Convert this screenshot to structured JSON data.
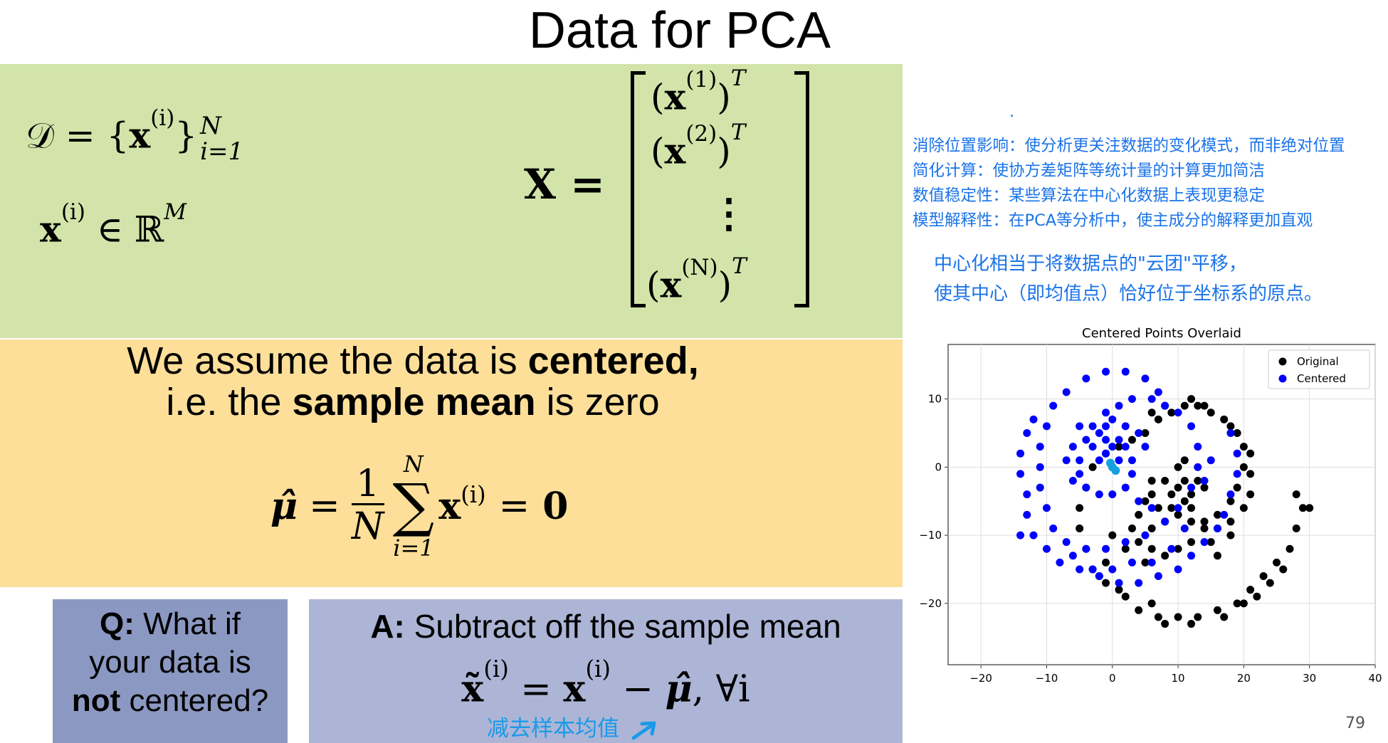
{
  "title": "Data for PCA",
  "green": {
    "dataset_D": "𝒟 = {",
    "dataset_x": "x",
    "dataset_sup": "(i)",
    "dataset_close": "}",
    "dataset_top": "N",
    "dataset_bottom": "i=1",
    "x_elem": "x",
    "x_elem_sup": "(i)",
    "x_in": "∈ ℝ",
    "x_in_sup": "M",
    "matrix_lhs": "X =",
    "matrix_rows": [
      {
        "open": "(",
        "x": "x",
        "sup": "(1)",
        "close": ")",
        "t": "T"
      },
      {
        "open": "(",
        "x": "x",
        "sup": "(2)",
        "close": ")",
        "t": "T"
      },
      {
        "vdots": "⋮"
      },
      {
        "open": "(",
        "x": "x",
        "sup": "(N)",
        "close": ")",
        "t": "T"
      }
    ]
  },
  "orange": {
    "line1_pre": "We assume the data is ",
    "line1_bold": "centered,",
    "line2_pre": "i.e. the ",
    "line2_bold": "sample mean",
    "line2_post": " is zero",
    "mu": "μ̂",
    "eq": "=",
    "frac_num": "1",
    "frac_den": "N",
    "sum": "∑",
    "sum_top": "N",
    "sum_bottom": "i=1",
    "sum_x": "x",
    "sum_sup": "(i)",
    "eq2": "=",
    "zero": "0"
  },
  "q": {
    "label": "Q:",
    "text1": " What if",
    "text2": "your data is",
    "bold": "not",
    "text3": " centered?"
  },
  "a": {
    "label": "A:",
    "text": " Subtract off the sample mean",
    "eq_xt": "x̃",
    "eq_xt_sup": "(i)",
    "eq_mid": " = ",
    "eq_x": "x",
    "eq_x_sup": "(i)",
    "eq_minus": " − ",
    "eq_mu": "μ̂",
    "eq_tail": ", ∀i"
  },
  "annotation": {
    "subtract": "减去样本均值",
    "dot": ".",
    "notes": [
      "消除位置影响：使分析更关注数据的变化模式，而非绝对位置",
      "简化计算：使协方差矩阵等统计量的计算更加简洁",
      "数值稳定性：某些算法在中心化数据上表现更稳定",
      "模型解释性：在PCA等分析中，使主成分的解释更加直观"
    ],
    "centering_1": "中心化相当于将数据点的\"云团\"平移，",
    "centering_2": "使其中心（即均值点）恰好位于坐标系的原点。",
    "color": "#1a73e8"
  },
  "page_number": "79",
  "chart_data": {
    "type": "scatter",
    "title": "Centered Points Overlaid",
    "xlabel": "",
    "ylabel": "",
    "xlim": [
      -25,
      40
    ],
    "ylim": [
      -29,
      18
    ],
    "xticks": [
      -20,
      -10,
      0,
      10,
      20,
      30,
      40
    ],
    "yticks": [
      -20,
      -10,
      0,
      10
    ],
    "grid": true,
    "legend": "top-right",
    "series": [
      {
        "name": "Original",
        "color": "#000000",
        "points": [
          [
            10,
            -3
          ],
          [
            11,
            -2
          ],
          [
            9,
            -4
          ],
          [
            10,
            0
          ],
          [
            8,
            -2
          ],
          [
            12,
            -4
          ],
          [
            6,
            -2
          ],
          [
            5,
            -5
          ],
          [
            7,
            -6
          ],
          [
            4,
            -7
          ],
          [
            3,
            -9
          ],
          [
            4,
            -11
          ],
          [
            6,
            -12
          ],
          [
            8,
            -13
          ],
          [
            10,
            -12
          ],
          [
            12,
            -11
          ],
          [
            14,
            -9
          ],
          [
            16,
            -7
          ],
          [
            18,
            -5
          ],
          [
            19,
            -3
          ],
          [
            20,
            0
          ],
          [
            20,
            3
          ],
          [
            19,
            5
          ],
          [
            17,
            7
          ],
          [
            15,
            8
          ],
          [
            13,
            9
          ],
          [
            11,
            9
          ],
          [
            9,
            8
          ],
          [
            7,
            7
          ],
          [
            5,
            5
          ],
          [
            3,
            4
          ],
          [
            1,
            3
          ],
          [
            -1,
            2
          ],
          [
            -3,
            0
          ],
          [
            -4,
            -3
          ],
          [
            -5,
            -6
          ],
          [
            -5,
            -9
          ],
          [
            -4,
            -12
          ],
          [
            -3,
            -15
          ],
          [
            -1,
            -17
          ],
          [
            2,
            -19
          ],
          [
            4,
            -21
          ],
          [
            7,
            -22
          ],
          [
            10,
            -22
          ],
          [
            13,
            -22
          ],
          [
            16,
            -21
          ],
          [
            19,
            -20
          ],
          [
            21,
            -18
          ],
          [
            23,
            -16
          ],
          [
            25,
            -14
          ],
          [
            27,
            -12
          ],
          [
            28,
            -9
          ],
          [
            29,
            -6
          ],
          [
            30,
            -6
          ],
          [
            28,
            -4
          ],
          [
            18,
            -10
          ],
          [
            15,
            -11
          ],
          [
            16,
            -13
          ],
          [
            14,
            -3
          ],
          [
            13,
            -2
          ],
          [
            11,
            1
          ],
          [
            22,
            -19
          ],
          [
            24,
            -17
          ],
          [
            26,
            -15
          ],
          [
            5,
            -14
          ],
          [
            1,
            -18
          ],
          [
            -2,
            -16
          ],
          [
            -1,
            -14
          ],
          [
            6,
            -20
          ],
          [
            8,
            -23
          ],
          [
            12,
            -23
          ],
          [
            17,
            -22
          ],
          [
            20,
            -20
          ],
          [
            2,
            -12
          ],
          [
            0,
            -10
          ],
          [
            6,
            -4
          ],
          [
            9,
            -6
          ],
          [
            11,
            -5
          ],
          [
            12,
            -6
          ],
          [
            10,
            -7
          ],
          [
            8,
            -8
          ],
          [
            6,
            -9
          ],
          [
            12,
            -8
          ],
          [
            14,
            -8
          ],
          [
            16,
            -9
          ],
          [
            18,
            -8
          ],
          [
            20,
            -6
          ],
          [
            21,
            -4
          ],
          [
            21,
            -1
          ],
          [
            21,
            2
          ],
          [
            18,
            6
          ],
          [
            14,
            9
          ],
          [
            12,
            10
          ],
          [
            8,
            9
          ],
          [
            6,
            8
          ]
        ]
      },
      {
        "name": "Centered",
        "color": "#0000ff",
        "points": [
          [
            0,
            0
          ],
          [
            1,
            1
          ],
          [
            -1,
            2
          ],
          [
            0,
            3
          ],
          [
            -1,
            4
          ],
          [
            1,
            4
          ],
          [
            2,
            3
          ],
          [
            3,
            1
          ],
          [
            3,
            -1
          ],
          [
            2,
            -3
          ],
          [
            0,
            -4
          ],
          [
            -2,
            -4
          ],
          [
            -4,
            -3
          ],
          [
            -5,
            -1
          ],
          [
            -5,
            1
          ],
          [
            -4,
            4
          ],
          [
            -3,
            6
          ],
          [
            -1,
            8
          ],
          [
            1,
            9
          ],
          [
            3,
            10
          ],
          [
            6,
            10
          ],
          [
            8,
            9
          ],
          [
            10,
            8
          ],
          [
            12,
            6
          ],
          [
            13,
            3
          ],
          [
            13,
            0
          ],
          [
            12,
            -3
          ],
          [
            10,
            -6
          ],
          [
            8,
            -8
          ],
          [
            5,
            -10
          ],
          [
            2,
            -11
          ],
          [
            -1,
            -12
          ],
          [
            -4,
            -12
          ],
          [
            -7,
            -11
          ],
          [
            -9,
            -9
          ],
          [
            -10,
            -6
          ],
          [
            -11,
            -3
          ],
          [
            -11,
            0
          ],
          [
            -11,
            3
          ],
          [
            -10,
            6
          ],
          [
            -9,
            9
          ],
          [
            -7,
            11
          ],
          [
            -4,
            13
          ],
          [
            -1,
            14
          ],
          [
            2,
            14
          ],
          [
            5,
            13
          ],
          [
            7,
            11
          ],
          [
            -12,
            7
          ],
          [
            -13,
            5
          ],
          [
            -14,
            2
          ],
          [
            -14,
            -1
          ],
          [
            -13,
            -4
          ],
          [
            -13,
            -7
          ],
          [
            -12,
            -10
          ],
          [
            -10,
            -12
          ],
          [
            -8,
            -14
          ],
          [
            -5,
            -15
          ],
          [
            -2,
            -16
          ],
          [
            1,
            -17
          ],
          [
            4,
            -17
          ],
          [
            7,
            -16
          ],
          [
            10,
            -15
          ],
          [
            12,
            -13
          ],
          [
            14,
            -11
          ],
          [
            16,
            -9
          ],
          [
            17,
            -7
          ],
          [
            18,
            -4
          ],
          [
            19,
            -1
          ],
          [
            19,
            2
          ],
          [
            18,
            5
          ],
          [
            -14,
            -10
          ],
          [
            -6,
            -13
          ],
          [
            -3,
            -15
          ],
          [
            14,
            -2
          ],
          [
            15,
            1
          ],
          [
            11,
            -9
          ],
          [
            9,
            -12
          ],
          [
            6,
            -14
          ],
          [
            3,
            -14
          ],
          [
            0,
            -15
          ],
          [
            -2,
            5
          ],
          [
            -3,
            3
          ],
          [
            -2,
            1
          ],
          [
            -1,
            6
          ],
          [
            0,
            7
          ],
          [
            2,
            6
          ],
          [
            4,
            5
          ],
          [
            5,
            3
          ],
          [
            4,
            -5
          ],
          [
            6,
            -6
          ],
          [
            -6,
            -2
          ],
          [
            -7,
            1
          ],
          [
            -6,
            3
          ],
          [
            -5,
            6
          ]
        ]
      },
      {
        "name": "",
        "color": "#14a0e0",
        "points": [
          [
            0,
            0
          ],
          [
            0.5,
            -0.5
          ],
          [
            -0.3,
            0.6
          ]
        ]
      }
    ]
  }
}
